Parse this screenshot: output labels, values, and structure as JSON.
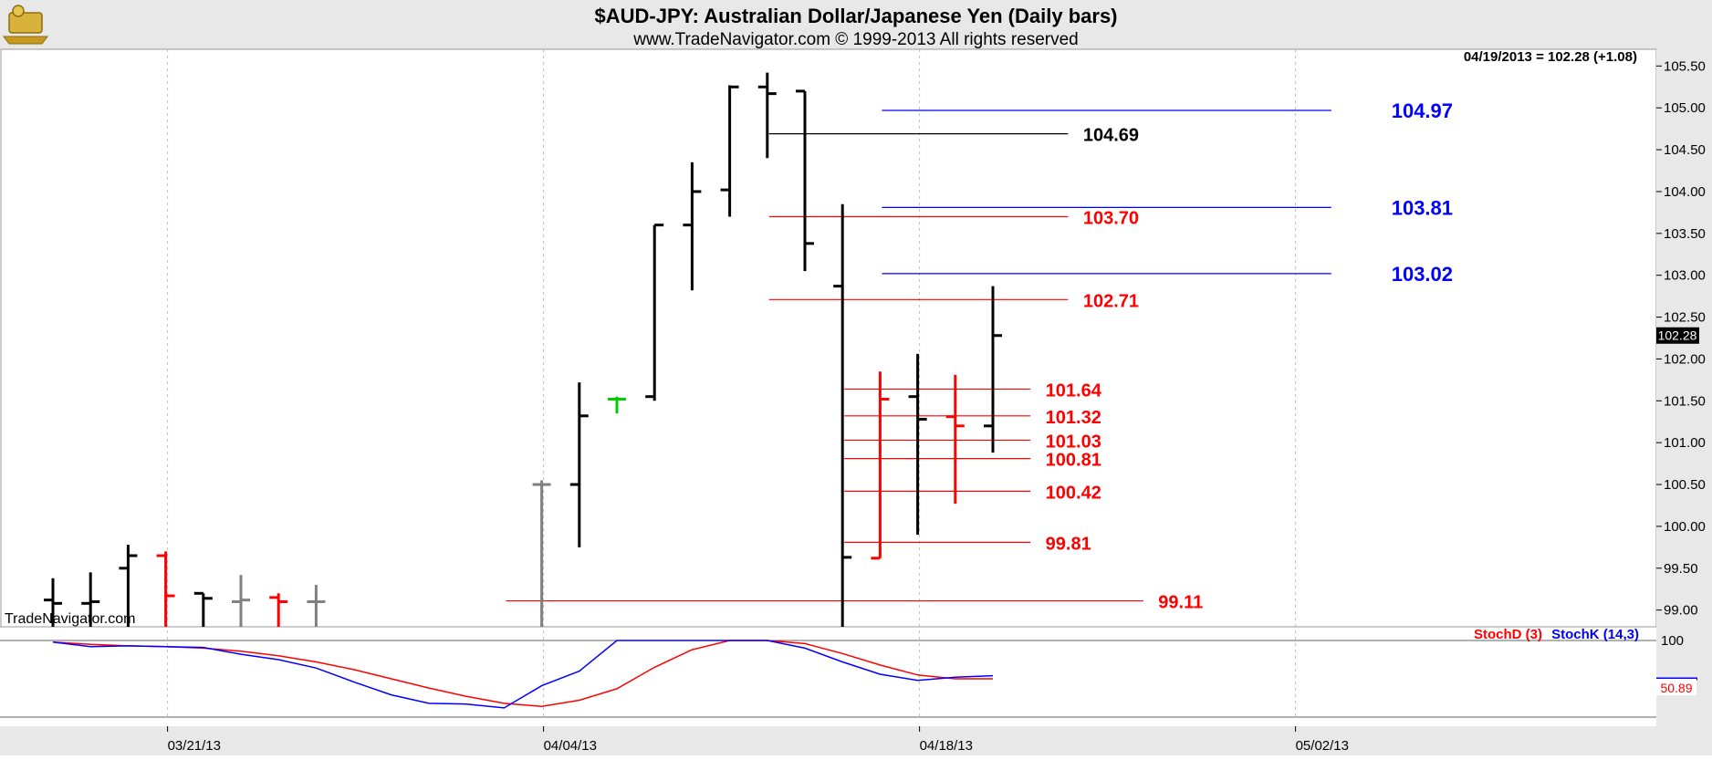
{
  "header": {
    "title": "$AUD-JPY:  Australian Dollar/Japanese Yen  (Daily bars)",
    "subtitle": "www.TradeNavigator.com © 1999-2013 All rights reserved",
    "last_quote": "04/19/2013 = 102.28 (+1.08)",
    "watermark": "TradeNavigator.com",
    "logo": "TradeNavigator logo"
  },
  "colors": {
    "bar_black": "#000000",
    "bar_red": "#ff0000",
    "bar_gray": "#808080",
    "bar_green": "#00cc00",
    "level_red": "#ff0000",
    "level_blue": "#0000ff",
    "stoch_d": "#ff0000",
    "stoch_k": "#0000ff",
    "grid": "#bbbbbb",
    "panel_bg": "#e8e8e8"
  },
  "chart_data": {
    "type": "ohlc",
    "price_axis": {
      "range": [
        98.8,
        105.7
      ],
      "ticks": [
        99.0,
        99.5,
        100.0,
        100.5,
        101.0,
        101.5,
        102.0,
        102.5,
        103.0,
        103.5,
        104.0,
        104.5,
        105.0,
        105.5
      ],
      "tick_labels": [
        "99.00",
        "99.50",
        "100.00",
        "100.50",
        "101.00",
        "101.50",
        "102.00",
        "102.50",
        "103.00",
        "103.50",
        "104.00",
        "104.50",
        "105.00",
        "105.50"
      ],
      "last_price_label": "102.28"
    },
    "date_axis": {
      "labels": [
        {
          "label": "03/21/13",
          "bar_index": 3
        },
        {
          "label": "04/04/13",
          "bar_index": 13
        },
        {
          "label": "04/18/13",
          "bar_index": 23
        },
        {
          "label": "05/02/13",
          "bar_index": 33
        }
      ],
      "total_slots": 44
    },
    "bars": [
      {
        "i": 0,
        "open": 99.12,
        "high": 99.38,
        "low": 98.8,
        "close": 99.08,
        "color": "black"
      },
      {
        "i": 1,
        "open": 99.08,
        "high": 99.45,
        "low": 98.8,
        "close": 99.1,
        "color": "black"
      },
      {
        "i": 2,
        "open": 99.5,
        "high": 99.78,
        "low": 98.8,
        "close": 99.65,
        "color": "black"
      },
      {
        "i": 3,
        "open": 99.65,
        "high": 99.7,
        "low": 98.8,
        "close": 99.17,
        "color": "red"
      },
      {
        "i": 4,
        "open": 99.2,
        "high": 99.2,
        "low": 98.8,
        "close": 99.14,
        "color": "black"
      },
      {
        "i": 5,
        "open": 99.1,
        "high": 99.42,
        "low": 98.8,
        "close": 99.12,
        "color": "gray"
      },
      {
        "i": 6,
        "open": 99.15,
        "high": 99.2,
        "low": 98.8,
        "close": 99.1,
        "color": "red"
      },
      {
        "i": 7,
        "open": 99.1,
        "high": 99.3,
        "low": 98.8,
        "close": 99.1,
        "color": "gray"
      },
      {
        "i": 13,
        "open": 100.5,
        "high": 100.55,
        "low": 98.8,
        "close": 100.5,
        "color": "gray"
      },
      {
        "i": 14,
        "open": 100.5,
        "high": 101.72,
        "low": 99.75,
        "close": 101.32,
        "color": "black"
      },
      {
        "i": 15,
        "open": 101.52,
        "high": 101.55,
        "low": 101.35,
        "close": 101.52,
        "color": "green"
      },
      {
        "i": 16,
        "open": 101.55,
        "high": 103.6,
        "low": 101.5,
        "close": 103.6,
        "color": "black"
      },
      {
        "i": 17,
        "open": 103.6,
        "high": 104.35,
        "low": 102.82,
        "close": 104.0,
        "color": "black"
      },
      {
        "i": 18,
        "open": 104.02,
        "high": 105.27,
        "low": 103.7,
        "close": 105.25,
        "color": "black"
      },
      {
        "i": 19,
        "open": 105.25,
        "high": 105.42,
        "low": 104.4,
        "close": 105.17,
        "color": "black"
      },
      {
        "i": 20,
        "open": 105.2,
        "high": 105.2,
        "low": 103.05,
        "close": 103.38,
        "color": "black"
      },
      {
        "i": 21,
        "open": 102.87,
        "high": 103.85,
        "low": 98.8,
        "close": 99.63,
        "color": "black"
      },
      {
        "i": 22,
        "open": 99.62,
        "high": 101.85,
        "low": 99.62,
        "close": 101.52,
        "color": "red"
      },
      {
        "i": 23,
        "open": 101.55,
        "high": 102.06,
        "low": 99.9,
        "close": 101.28,
        "color": "black"
      },
      {
        "i": 24,
        "open": 101.31,
        "high": 101.81,
        "low": 100.27,
        "close": 101.2,
        "color": "red"
      },
      {
        "i": 25,
        "open": 101.2,
        "high": 102.87,
        "low": 100.88,
        "close": 102.28,
        "color": "black"
      }
    ],
    "levels": [
      {
        "value": 104.97,
        "label": "104.97",
        "color": "blue",
        "from_bar": 22,
        "to_bar": 34,
        "label_at_bar": 35.6
      },
      {
        "value": 103.81,
        "label": "103.81",
        "color": "blue",
        "from_bar": 22,
        "to_bar": 34,
        "label_at_bar": 35.6
      },
      {
        "value": 103.02,
        "label": "103.02",
        "color": "blue",
        "from_bar": 22,
        "to_bar": 34,
        "label_at_bar": 35.6
      },
      {
        "value": 104.69,
        "label": "104.69",
        "color": "black",
        "from_bar": 19,
        "to_bar": 27,
        "label_at_bar": 27.4
      },
      {
        "value": 103.7,
        "label": "103.70",
        "color": "red",
        "from_bar": 19,
        "to_bar": 27,
        "label_at_bar": 27.4
      },
      {
        "value": 102.71,
        "label": "102.71",
        "color": "red",
        "from_bar": 19,
        "to_bar": 27,
        "label_at_bar": 27.4
      },
      {
        "value": 101.64,
        "label": "101.64",
        "color": "red",
        "from_bar": 21,
        "to_bar": 26,
        "label_at_bar": 26.4
      },
      {
        "value": 101.32,
        "label": "101.32",
        "color": "red",
        "from_bar": 21,
        "to_bar": 26,
        "label_at_bar": 26.4
      },
      {
        "value": 101.03,
        "label": "101.03",
        "color": "red",
        "from_bar": 21,
        "to_bar": 26,
        "label_at_bar": 26.4
      },
      {
        "value": 100.81,
        "label": "100.81",
        "color": "red",
        "from_bar": 21,
        "to_bar": 26,
        "label_at_bar": 26.4
      },
      {
        "value": 100.42,
        "label": "100.42",
        "color": "red",
        "from_bar": 21,
        "to_bar": 26,
        "label_at_bar": 26.4
      },
      {
        "value": 99.81,
        "label": "99.81",
        "color": "red",
        "from_bar": 21,
        "to_bar": 26,
        "label_at_bar": 26.4
      },
      {
        "value": 99.11,
        "label": "99.11",
        "color": "red",
        "from_bar": 12,
        "to_bar": 29,
        "label_at_bar": 29.4
      }
    ],
    "stochastic": {
      "legend_d": "StochD (3)",
      "legend_k": "StochK (14,3)",
      "axis_label": "100",
      "range": [
        0,
        100
      ],
      "last_value_label": "50.89",
      "stochD": [
        {
          "x": 0,
          "y": 98
        },
        {
          "x": 1,
          "y": 95
        },
        {
          "x": 2,
          "y": 93
        },
        {
          "x": 3,
          "y": 92
        },
        {
          "x": 4,
          "y": 90
        },
        {
          "x": 5,
          "y": 86
        },
        {
          "x": 6,
          "y": 80
        },
        {
          "x": 7,
          "y": 72
        },
        {
          "x": 8,
          "y": 62
        },
        {
          "x": 9,
          "y": 50
        },
        {
          "x": 10,
          "y": 38
        },
        {
          "x": 11,
          "y": 27
        },
        {
          "x": 12,
          "y": 18
        },
        {
          "x": 13,
          "y": 14
        },
        {
          "x": 14,
          "y": 22
        },
        {
          "x": 15,
          "y": 37
        },
        {
          "x": 16,
          "y": 65
        },
        {
          "x": 17,
          "y": 88
        },
        {
          "x": 18,
          "y": 100
        },
        {
          "x": 19,
          "y": 101
        },
        {
          "x": 20,
          "y": 96
        },
        {
          "x": 21,
          "y": 83
        },
        {
          "x": 22,
          "y": 68
        },
        {
          "x": 23,
          "y": 55
        },
        {
          "x": 24,
          "y": 50
        },
        {
          "x": 25,
          "y": 50
        }
      ],
      "stochK": [
        {
          "x": 0,
          "y": 98
        },
        {
          "x": 1,
          "y": 92
        },
        {
          "x": 2,
          "y": 93
        },
        {
          "x": 3,
          "y": 92
        },
        {
          "x": 4,
          "y": 91
        },
        {
          "x": 5,
          "y": 82
        },
        {
          "x": 6,
          "y": 75
        },
        {
          "x": 7,
          "y": 64
        },
        {
          "x": 8,
          "y": 46
        },
        {
          "x": 9,
          "y": 29
        },
        {
          "x": 10,
          "y": 18
        },
        {
          "x": 11,
          "y": 17
        },
        {
          "x": 12,
          "y": 12
        },
        {
          "x": 13,
          "y": 41
        },
        {
          "x": 14,
          "y": 60
        },
        {
          "x": 15,
          "y": 100
        },
        {
          "x": 16,
          "y": 100
        },
        {
          "x": 17,
          "y": 101
        },
        {
          "x": 18,
          "y": 101
        },
        {
          "x": 19,
          "y": 101
        },
        {
          "x": 20,
          "y": 90
        },
        {
          "x": 21,
          "y": 72
        },
        {
          "x": 22,
          "y": 56
        },
        {
          "x": 23,
          "y": 48
        },
        {
          "x": 24,
          "y": 52
        },
        {
          "x": 25,
          "y": 54
        }
      ]
    }
  }
}
